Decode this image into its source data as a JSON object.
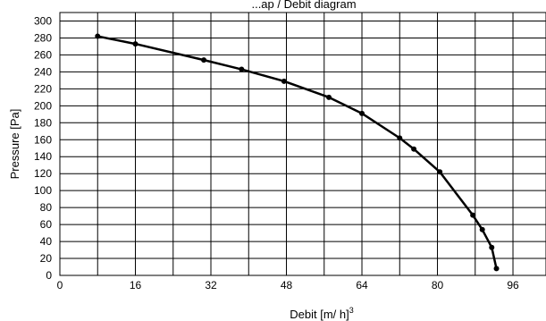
{
  "chart_data": {
    "type": "line",
    "title": "",
    "top_label": "...ap  / Debit diagram",
    "xlabel": "Debit [m/ h]",
    "xlabel_sup": "3",
    "ylabel": "Pressure [Pa]",
    "xlim": [
      0,
      103
    ],
    "ylim": [
      0,
      310
    ],
    "x_ticks": [
      0,
      16,
      32,
      48,
      64,
      80,
      96
    ],
    "y_ticks": [
      0,
      20,
      40,
      60,
      80,
      100,
      120,
      140,
      160,
      180,
      200,
      220,
      240,
      260,
      280,
      300
    ],
    "x_grid": [
      0,
      8,
      16,
      24,
      32,
      40,
      48,
      56,
      64,
      72,
      80,
      88,
      96,
      103
    ],
    "grid": true,
    "legend": "none",
    "series": [
      {
        "x": [
          8,
          16,
          30.5,
          38.5,
          47.5,
          57,
          64,
          72,
          75,
          80.5,
          87.5,
          89.5,
          91.5,
          92.5
        ],
        "y": [
          282,
          273,
          254,
          243,
          229,
          210,
          191,
          162,
          149,
          122,
          71,
          54,
          33,
          8
        ]
      }
    ]
  },
  "colors": {
    "line": "#000000",
    "grid": "#000000",
    "background": "#ffffff"
  }
}
